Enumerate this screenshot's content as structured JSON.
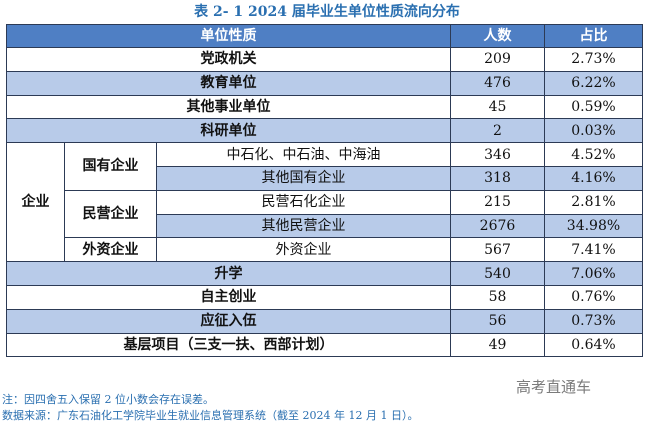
{
  "title": "表 2- 1  2024 届毕业生单位性质流向分布",
  "headers": [
    "单位性质",
    "人数",
    "占比"
  ],
  "rows": {
    "dangzheng": {
      "label": "党政机关",
      "count": "209",
      "pct": "2.73%"
    },
    "jiaoyu": {
      "label": "教育单位",
      "count": "476",
      "pct": "6.22%"
    },
    "qitashiye": {
      "label": "其他事业单位",
      "count": "45",
      "pct": "0.59%"
    },
    "keyan": {
      "label": "科研单位",
      "count": "2",
      "pct": "0.03%"
    },
    "qiye_label": "企业",
    "guoyou_label": "国有企业",
    "zhongshihua": {
      "label": "中石化、中石油、中海油",
      "count": "346",
      "pct": "4.52%"
    },
    "qitaguoyou": {
      "label": "其他国有企业",
      "count": "318",
      "pct": "4.16%"
    },
    "minying_label": "民营企业",
    "minyingshihua": {
      "label": "民营石化企业",
      "count": "215",
      "pct": "2.81%"
    },
    "qitaminying": {
      "label": "其他民营企业",
      "count": "2676",
      "pct": "34.98%"
    },
    "waizi_label": "外资企业",
    "waizi": {
      "label": "外资企业",
      "count": "567",
      "pct": "7.41%"
    },
    "shengxue": {
      "label": "升学",
      "count": "540",
      "pct": "7.06%"
    },
    "zizhu": {
      "label": "自主创业",
      "count": "58",
      "pct": "0.76%"
    },
    "yingzheng": {
      "label": "应征入伍",
      "count": "56",
      "pct": "0.73%"
    },
    "jiceng": {
      "label": "基层项目（三支一扶、西部计划）",
      "count": "49",
      "pct": "0.64%"
    }
  },
  "notes": {
    "note1": "注：因四舍五入保留 2 位小数会存在误差。",
    "note2": "数据来源：广东石油化工学院毕业生就业信息管理系统（截至 2024 年 12 月 1 日）。"
  },
  "watermark": "高考直通车",
  "colors": {
    "header": "#4f7fc4",
    "shaded": "#b8cbe9",
    "title": "#2a6fb0"
  }
}
